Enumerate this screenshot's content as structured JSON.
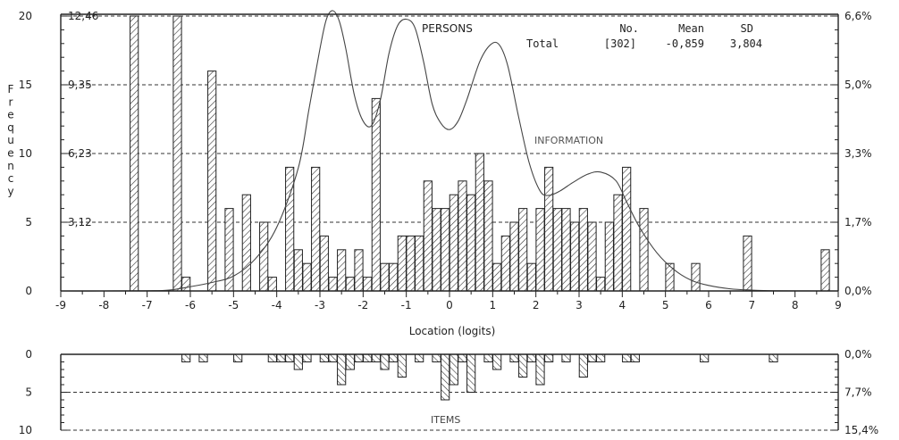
{
  "chart_data": {
    "type": "bar",
    "xlabel": "Location (logits)",
    "ylabel": "Frequency",
    "xlim": [
      -9,
      9
    ],
    "x_ticks": [
      "-9",
      "-8",
      "-7",
      "-6",
      "-5",
      "-4",
      "-3",
      "-2",
      "-1",
      "0",
      "1",
      "2",
      "3",
      "4",
      "5",
      "6",
      "7",
      "8",
      "9"
    ],
    "persons": {
      "label": "PERSONS",
      "ylim": [
        0,
        20
      ],
      "y_ticks": [
        "0",
        "5",
        "10",
        "15",
        "20"
      ],
      "y_ticks_count": [
        "3,12",
        "6,23",
        "9,35",
        "12,46"
      ],
      "y_ticks_right": [
        "0,0%",
        "1,7%",
        "3,3%",
        "5,0%",
        "6,6%"
      ],
      "stats": {
        "header": [
          "No.",
          "Mean",
          "SD"
        ],
        "row_label": "Total",
        "values": [
          "[302]",
          "-0,859",
          "3,804"
        ]
      },
      "bars": [
        {
          "x": -7.3,
          "y": 20
        },
        {
          "x": -6.3,
          "y": 20
        },
        {
          "x": -6.1,
          "y": 1
        },
        {
          "x": -5.5,
          "y": 16
        },
        {
          "x": -5.1,
          "y": 6
        },
        {
          "x": -4.7,
          "y": 7
        },
        {
          "x": -4.3,
          "y": 5
        },
        {
          "x": -4.1,
          "y": 1
        },
        {
          "x": -3.7,
          "y": 9
        },
        {
          "x": -3.5,
          "y": 3
        },
        {
          "x": -3.3,
          "y": 2
        },
        {
          "x": -3.1,
          "y": 9
        },
        {
          "x": -2.9,
          "y": 4
        },
        {
          "x": -2.7,
          "y": 1
        },
        {
          "x": -2.5,
          "y": 3
        },
        {
          "x": -2.3,
          "y": 1
        },
        {
          "x": -2.1,
          "y": 3
        },
        {
          "x": -1.9,
          "y": 1
        },
        {
          "x": -1.7,
          "y": 14
        },
        {
          "x": -1.5,
          "y": 2
        },
        {
          "x": -1.3,
          "y": 2
        },
        {
          "x": -1.1,
          "y": 4
        },
        {
          "x": -0.9,
          "y": 4
        },
        {
          "x": -0.7,
          "y": 4
        },
        {
          "x": -0.5,
          "y": 8
        },
        {
          "x": -0.3,
          "y": 6
        },
        {
          "x": -0.1,
          "y": 6
        },
        {
          "x": 0.1,
          "y": 7
        },
        {
          "x": 0.3,
          "y": 8
        },
        {
          "x": 0.5,
          "y": 7
        },
        {
          "x": 0.7,
          "y": 10
        },
        {
          "x": 0.9,
          "y": 8
        },
        {
          "x": 1.1,
          "y": 2
        },
        {
          "x": 1.3,
          "y": 4
        },
        {
          "x": 1.5,
          "y": 5
        },
        {
          "x": 1.7,
          "y": 6
        },
        {
          "x": 1.9,
          "y": 2
        },
        {
          "x": 2.1,
          "y": 6
        },
        {
          "x": 2.3,
          "y": 9
        },
        {
          "x": 2.5,
          "y": 6
        },
        {
          "x": 2.7,
          "y": 6
        },
        {
          "x": 2.9,
          "y": 5
        },
        {
          "x": 3.1,
          "y": 6
        },
        {
          "x": 3.3,
          "y": 5
        },
        {
          "x": 3.5,
          "y": 1
        },
        {
          "x": 3.7,
          "y": 5
        },
        {
          "x": 3.9,
          "y": 7
        },
        {
          "x": 4.1,
          "y": 9
        },
        {
          "x": 4.5,
          "y": 6
        },
        {
          "x": 5.1,
          "y": 2
        },
        {
          "x": 5.7,
          "y": 2
        },
        {
          "x": 6.9,
          "y": 4
        },
        {
          "x": 8.7,
          "y": 3
        }
      ]
    },
    "information": {
      "label": "INFORMATION",
      "curve": [
        [
          -9,
          0
        ],
        [
          -8,
          0
        ],
        [
          -7,
          0.005
        ],
        [
          -6.5,
          0.02
        ],
        [
          -6,
          0.1
        ],
        [
          -5.5,
          0.2
        ],
        [
          -5,
          0.35
        ],
        [
          -4.5,
          0.75
        ],
        [
          -4,
          1.5
        ],
        [
          -3.5,
          2.9
        ],
        [
          -3.25,
          4.3
        ],
        [
          -3,
          5.7
        ],
        [
          -2.85,
          6.4
        ],
        [
          -2.7,
          6.6
        ],
        [
          -2.55,
          6.35
        ],
        [
          -2.4,
          5.7
        ],
        [
          -2.2,
          4.6
        ],
        [
          -2,
          4.0
        ],
        [
          -1.8,
          3.9
        ],
        [
          -1.6,
          4.5
        ],
        [
          -1.4,
          5.6
        ],
        [
          -1.2,
          6.25
        ],
        [
          -1,
          6.4
        ],
        [
          -0.8,
          6.2
        ],
        [
          -0.6,
          5.4
        ],
        [
          -0.4,
          4.4
        ],
        [
          -0.2,
          3.95
        ],
        [
          0,
          3.8
        ],
        [
          0.2,
          4.0
        ],
        [
          0.4,
          4.5
        ],
        [
          0.7,
          5.4
        ],
        [
          0.95,
          5.8
        ],
        [
          1.15,
          5.8
        ],
        [
          1.35,
          5.3
        ],
        [
          1.6,
          4.1
        ],
        [
          1.85,
          3.0
        ],
        [
          2.1,
          2.35
        ],
        [
          2.3,
          2.25
        ],
        [
          2.55,
          2.35
        ],
        [
          2.85,
          2.55
        ],
        [
          3.2,
          2.75
        ],
        [
          3.5,
          2.8
        ],
        [
          3.85,
          2.6
        ],
        [
          4.1,
          2.1
        ],
        [
          4.4,
          1.5
        ],
        [
          4.8,
          0.9
        ],
        [
          5.2,
          0.5
        ],
        [
          5.6,
          0.25
        ],
        [
          6,
          0.13
        ],
        [
          6.5,
          0.05
        ],
        [
          7,
          0.02
        ],
        [
          7.5,
          0.005
        ],
        [
          9,
          0
        ]
      ]
    },
    "items": {
      "label": "ITEMS",
      "ylim": [
        0,
        10
      ],
      "y_ticks": [
        "0",
        "5",
        "10"
      ],
      "y_ticks_right": [
        "0,0%",
        "7,7%",
        "15,4%"
      ],
      "bars": [
        {
          "x": -6.1,
          "y": 1
        },
        {
          "x": -5.7,
          "y": 1
        },
        {
          "x": -4.9,
          "y": 1
        },
        {
          "x": -4.1,
          "y": 1
        },
        {
          "x": -3.9,
          "y": 1
        },
        {
          "x": -3.7,
          "y": 1
        },
        {
          "x": -3.5,
          "y": 2
        },
        {
          "x": -3.3,
          "y": 1
        },
        {
          "x": -2.9,
          "y": 1
        },
        {
          "x": -2.7,
          "y": 1
        },
        {
          "x": -2.5,
          "y": 4
        },
        {
          "x": -2.3,
          "y": 2
        },
        {
          "x": -2.1,
          "y": 1
        },
        {
          "x": -1.9,
          "y": 1
        },
        {
          "x": -1.7,
          "y": 1
        },
        {
          "x": -1.5,
          "y": 2
        },
        {
          "x": -1.3,
          "y": 1
        },
        {
          "x": -1.1,
          "y": 3
        },
        {
          "x": -0.7,
          "y": 1
        },
        {
          "x": -0.3,
          "y": 1
        },
        {
          "x": -0.1,
          "y": 6
        },
        {
          "x": 0.1,
          "y": 4
        },
        {
          "x": 0.3,
          "y": 1
        },
        {
          "x": 0.5,
          "y": 5
        },
        {
          "x": 0.9,
          "y": 1
        },
        {
          "x": 1.1,
          "y": 2
        },
        {
          "x": 1.5,
          "y": 1
        },
        {
          "x": 1.7,
          "y": 3
        },
        {
          "x": 1.9,
          "y": 1
        },
        {
          "x": 2.1,
          "y": 4
        },
        {
          "x": 2.3,
          "y": 1
        },
        {
          "x": 2.7,
          "y": 1
        },
        {
          "x": 3.1,
          "y": 3
        },
        {
          "x": 3.3,
          "y": 1
        },
        {
          "x": 3.5,
          "y": 1
        },
        {
          "x": 4.1,
          "y": 1
        },
        {
          "x": 4.3,
          "y": 1
        },
        {
          "x": 5.9,
          "y": 1
        },
        {
          "x": 7.5,
          "y": 1
        }
      ]
    }
  }
}
